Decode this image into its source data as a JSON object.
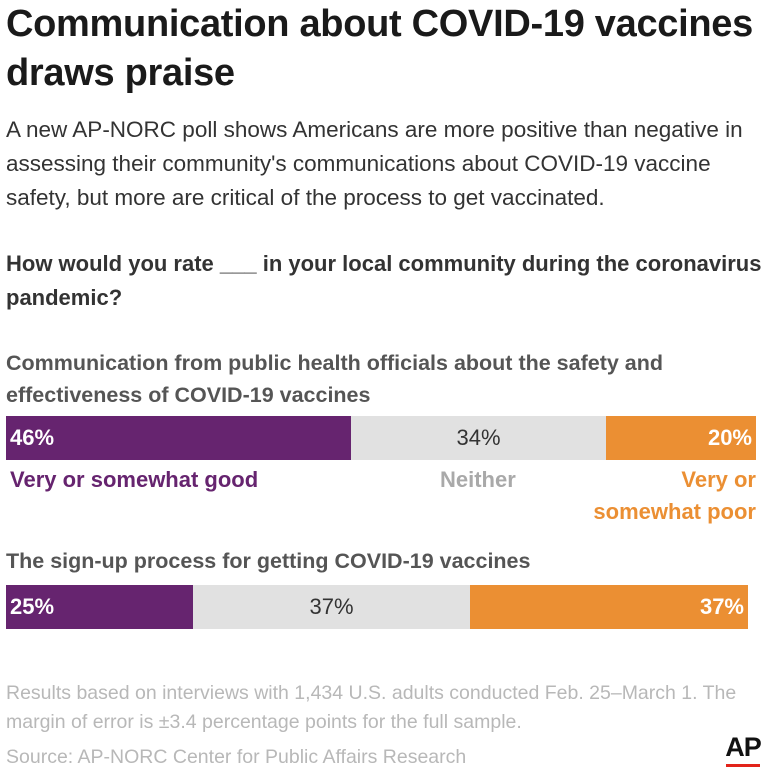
{
  "header": {
    "title": "Communication about COVID-19 vaccines draws praise",
    "subtitle": "A new AP-NORC poll shows Americans are more positive than negative in assessing their community's communications about COVID-19 vaccine safety, but more are critical of the process to get vaccinated.",
    "question": "How would you rate ___ in your local community during the coronavirus pandemic?"
  },
  "legend": {
    "good": "Very or somewhat good",
    "neither": "Neither",
    "poor_line1": "Very or",
    "poor_line2": "somewhat poor"
  },
  "chart_data": {
    "type": "bar",
    "stacked": true,
    "orientation": "horizontal",
    "title": "Communication about COVID-19 vaccines draws praise",
    "categories": [
      "Communication from public health officials about the safety and effectiveness of COVID-19 vaccines",
      "The sign-up process for getting COVID-19 vaccines"
    ],
    "series": [
      {
        "name": "Very or somewhat good",
        "values": [
          46,
          25
        ],
        "labels": [
          "46%",
          "25%"
        ],
        "color": "#66246f"
      },
      {
        "name": "Neither",
        "values": [
          34,
          37
        ],
        "labels": [
          "34%",
          "37%"
        ],
        "color": "#e1e1e1"
      },
      {
        "name": "Very or somewhat poor",
        "values": [
          20,
          37
        ],
        "labels": [
          "20%",
          "37%"
        ],
        "color": "#eb8f33"
      }
    ],
    "xlim": [
      0,
      100
    ],
    "grid": false,
    "legend_placement": "below first bar"
  },
  "footer": {
    "note": "Results based on interviews with 1,434 U.S. adults conducted Feb. 25–March 1. The margin of error is ±3.4 percentage points for the full sample.",
    "source": "Source: AP-NORC Center for Public Affairs Research",
    "logo_text": "AP"
  }
}
